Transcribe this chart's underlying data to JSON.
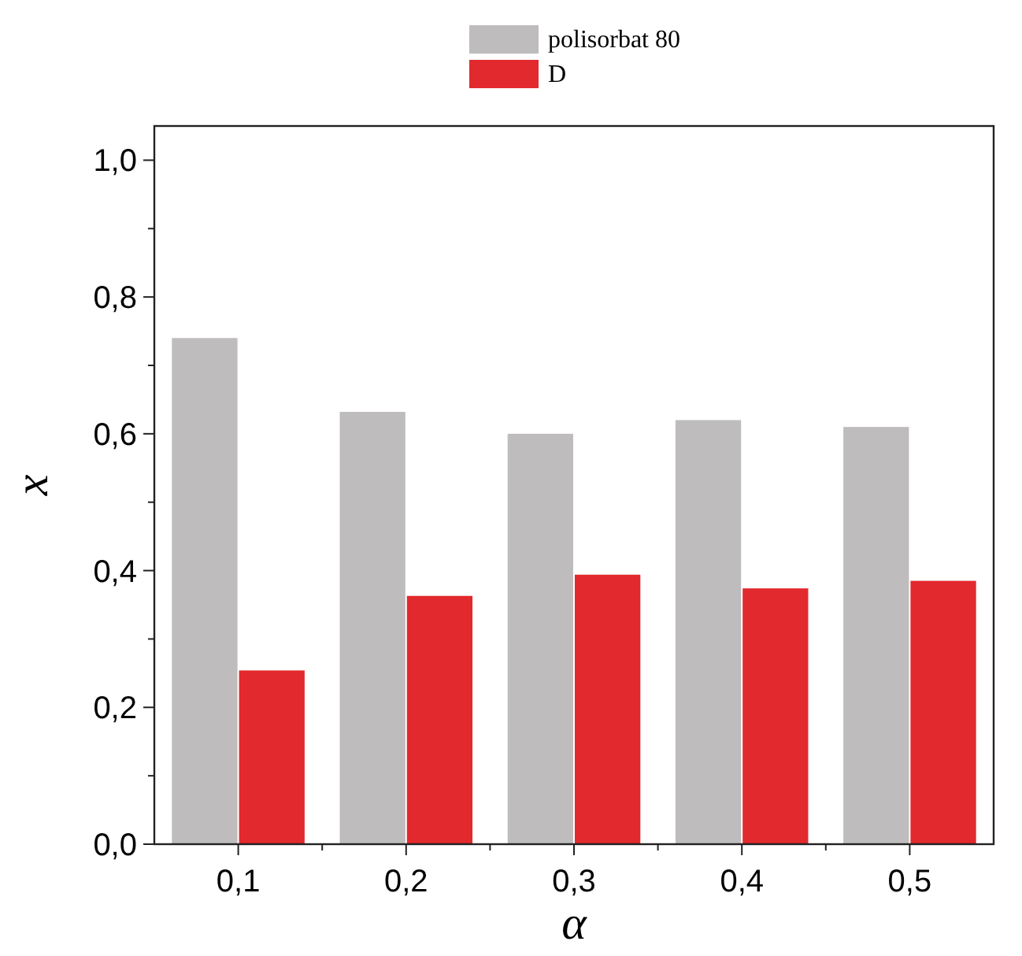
{
  "chart_data": {
    "type": "bar",
    "xlabel": "α",
    "ylabel": "x",
    "categories": [
      "0,1",
      "0,2",
      "0,3",
      "0,4",
      "0,5"
    ],
    "series": [
      {
        "name": "polisorbat 80",
        "color": "#bebcbd",
        "values": [
          0.74,
          0.632,
          0.6,
          0.62,
          0.61
        ]
      },
      {
        "name": "D",
        "color": "#e2292d",
        "values": [
          0.254,
          0.363,
          0.394,
          0.374,
          0.385
        ]
      }
    ],
    "ylim": [
      0,
      1.05
    ],
    "yticks": [
      {
        "value": 0,
        "label": "0,0"
      },
      {
        "value": 0.2,
        "label": "0,2"
      },
      {
        "value": 0.4,
        "label": "0,4"
      },
      {
        "value": 0.6,
        "label": "0,6"
      },
      {
        "value": 0.8,
        "label": "0,8"
      },
      {
        "value": 1,
        "label": "1,0"
      }
    ],
    "legend": "top",
    "grid": false
  }
}
